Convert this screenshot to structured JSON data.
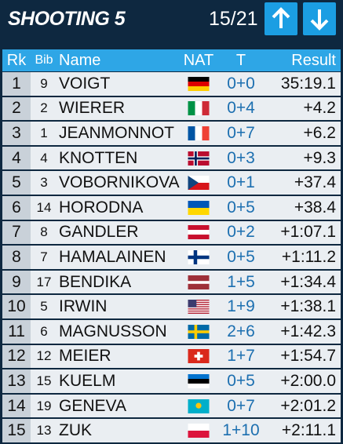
{
  "header": {
    "title": "SHOOTING 5",
    "progress": "15/21"
  },
  "table": {
    "columns": [
      "Rk",
      "Bib",
      "Name",
      "NAT",
      "T",
      "Result"
    ],
    "rows": [
      [
        1,
        9,
        "VOIGT",
        "0+0",
        "35:19.1"
      ],
      [
        2,
        2,
        "WIERER",
        "0+4",
        "+4.2"
      ],
      [
        3,
        1,
        "JEANMONNOT",
        "0+7",
        "+6.2"
      ],
      [
        4,
        4,
        "KNOTTEN",
        "0+3",
        "+9.3"
      ],
      [
        5,
        3,
        "VOBORNIKOVA",
        "0+1",
        "+37.4"
      ],
      [
        6,
        14,
        "HORODNA",
        "0+5",
        "+38.4"
      ],
      [
        7,
        8,
        "GANDLER",
        "0+2",
        "+1:07.1"
      ],
      [
        8,
        7,
        "HAMALAINEN",
        "0+5",
        "+1:11.2"
      ],
      [
        9,
        17,
        "BENDIKA",
        "1+5",
        "+1:34.4"
      ],
      [
        10,
        5,
        "IRWIN",
        "1+9",
        "+1:38.1"
      ],
      [
        11,
        6,
        "MAGNUSSON",
        "2+6",
        "+1:42.3"
      ],
      [
        12,
        12,
        "MEIER",
        "1+7",
        "+1:54.7"
      ],
      [
        13,
        15,
        "KUELM",
        "0+5",
        "+2:00.0"
      ],
      [
        14,
        19,
        "GENEVA",
        "0+7",
        "+2:01.2"
      ],
      [
        15,
        13,
        "ZUK",
        "1+10",
        "+2:11.1"
      ]
    ]
  }
}
